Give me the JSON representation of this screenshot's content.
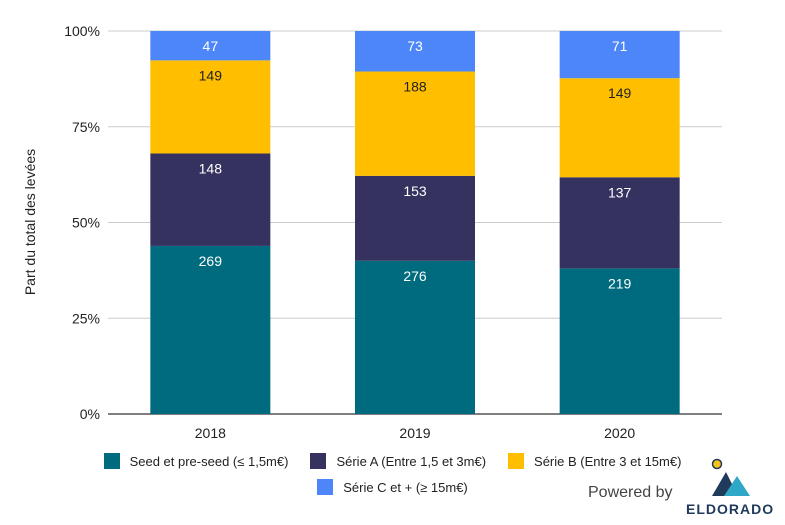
{
  "chart_data": {
    "type": "bar",
    "stacked": "percent",
    "categories": [
      "2018",
      "2019",
      "2020"
    ],
    "ylabel": "Part du total des levées",
    "ytick_labels": [
      "0%",
      "25%",
      "50%",
      "75%",
      "100%"
    ],
    "ylim": [
      0,
      100
    ],
    "grid": true,
    "legend_position": "bottom",
    "series": [
      {
        "name": "Seed et pre-seed (≤ 1,5m€)",
        "color": "#006b7f",
        "label_color": "#ffffff",
        "values": [
          269,
          276,
          219
        ]
      },
      {
        "name": "Série A (Entre 1,5 et 3m€)",
        "color": "#353260",
        "label_color": "#ffffff",
        "values": [
          148,
          153,
          137
        ]
      },
      {
        "name": "Série B (Entre 3 et 15m€)",
        "color": "#ffbf00",
        "label_color": "#222222",
        "values": [
          149,
          188,
          149
        ]
      },
      {
        "name": "Série C et + (≥ 15m€)",
        "color": "#4c86f8",
        "label_color": "#ffffff",
        "values": [
          47,
          73,
          71
        ]
      }
    ]
  },
  "branding": {
    "powered_by": "Powered by",
    "brand_name": "ELDORADO"
  }
}
